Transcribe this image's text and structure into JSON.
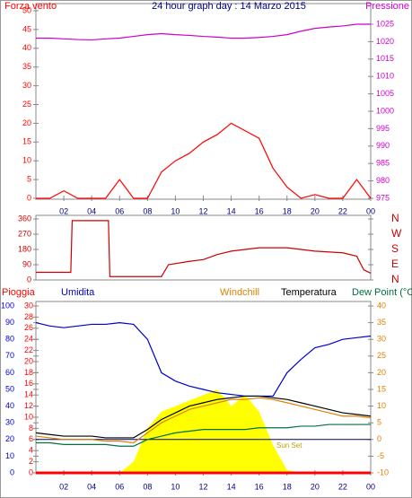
{
  "chart_data": [
    {
      "type": "line",
      "title": "24 hour graph day : 14 Marzo 2015",
      "xlim": [
        0,
        24
      ],
      "xticks": [
        {
          "value": 2,
          "label": "02"
        },
        {
          "value": 4,
          "label": "04"
        },
        {
          "value": 6,
          "label": "06"
        },
        {
          "value": 8,
          "label": "08"
        },
        10,
        12,
        14,
        16,
        18,
        20,
        22,
        {
          "value": 24,
          "label": "00"
        }
      ],
      "x": [
        0,
        1,
        2,
        3,
        4,
        5,
        6,
        7,
        8,
        9,
        10,
        11,
        12,
        13,
        14,
        15,
        16,
        17,
        18,
        19,
        20,
        21,
        22,
        23,
        24
      ],
      "ylim": [
        0,
        50
      ],
      "yticks": [
        0,
        5,
        10,
        15,
        20,
        25,
        30,
        35,
        40,
        45,
        50
      ],
      "y2lim": [
        975,
        1025
      ],
      "y2ticks": [
        975,
        980,
        985,
        990,
        995,
        1000,
        1005,
        1010,
        1015,
        1020,
        1025
      ],
      "series": [
        {
          "name": "Forza vento",
          "color": "#ff0000",
          "values": [
            0,
            0,
            2,
            0,
            0,
            0,
            5,
            0,
            0,
            7,
            10,
            12,
            15,
            17,
            20,
            18,
            16,
            8,
            3,
            0,
            1,
            0,
            0,
            5,
            0
          ]
        },
        {
          "name": "Pressione",
          "color": "#cc00cc",
          "axis": "y2",
          "values": [
            1021,
            1021,
            1020.8,
            1020.6,
            1020.5,
            1020.8,
            1021,
            1021.5,
            1022,
            1022.3,
            1022,
            1021.8,
            1021.5,
            1021.3,
            1021,
            1021,
            1021.2,
            1021.5,
            1022,
            1023,
            1023.8,
            1024.2,
            1024.5,
            1025,
            1025
          ]
        }
      ]
    },
    {
      "type": "line",
      "xlim": [
        0,
        24
      ],
      "x": [
        0,
        2.5,
        2.6,
        5.2,
        5.3,
        9,
        9.5,
        11,
        12,
        13,
        14,
        15,
        16,
        18,
        20,
        22,
        23,
        23.5,
        24
      ],
      "ylim": [
        0,
        360
      ],
      "yticks": [
        0,
        90,
        180,
        270,
        360
      ],
      "y2ticks": [
        {
          "value": 0,
          "label": "N"
        },
        {
          "value": 90,
          "label": "E"
        },
        {
          "value": 180,
          "label": "S"
        },
        {
          "value": 270,
          "label": "W"
        },
        {
          "value": 360,
          "label": "N"
        }
      ],
      "series": [
        {
          "color": "#cc0000",
          "values": [
            45,
            45,
            350,
            350,
            20,
            20,
            90,
            110,
            120,
            150,
            170,
            180,
            190,
            190,
            170,
            160,
            140,
            60,
            40
          ]
        }
      ]
    },
    {
      "type": "line",
      "xlim": [
        0,
        24
      ],
      "xticks": [
        {
          "value": 2,
          "label": "02"
        },
        {
          "value": 4,
          "label": "04"
        },
        {
          "value": 6,
          "label": "06"
        },
        {
          "value": 8,
          "label": "08"
        },
        10,
        12,
        14,
        16,
        18,
        20,
        22,
        {
          "value": 24,
          "label": "00"
        }
      ],
      "x": [
        0,
        1,
        2,
        3,
        4,
        5,
        6,
        7,
        8,
        9,
        10,
        11,
        12,
        13,
        14,
        15,
        16,
        17,
        18,
        19,
        20,
        21,
        22,
        23,
        24
      ],
      "ylim": [
        0,
        100
      ],
      "yticks": [
        0,
        10,
        20,
        30,
        40,
        50,
        60,
        70,
        80,
        90,
        100
      ],
      "y2lim": [
        -10,
        40
      ],
      "y2ticks": [
        -10,
        -5,
        0,
        5,
        10,
        15,
        20,
        25,
        30,
        35,
        40
      ],
      "y3lim": [
        0,
        30
      ],
      "y3ticks": [
        0,
        2,
        4,
        6,
        8,
        10,
        12,
        14,
        16,
        18,
        20,
        22,
        24,
        26,
        28,
        30
      ],
      "zero_line": 0,
      "fill_series": {
        "color": "#ffff00",
        "values": [
          0,
          0,
          0,
          0,
          0,
          0,
          0,
          2,
          8,
          11,
          12,
          13,
          14,
          15,
          12,
          14,
          11,
          5,
          0.5,
          0,
          0,
          0,
          0,
          0,
          0
        ]
      },
      "annotations": [
        "Sun Set"
      ],
      "series": [
        {
          "name": "Pioggia",
          "color": "#ff0000",
          "axis": "y3",
          "values": [
            0,
            0,
            0,
            0,
            0,
            0,
            0,
            0,
            0,
            0,
            0,
            0,
            0,
            0,
            0,
            0,
            0,
            0,
            0,
            0,
            0,
            0,
            0,
            0,
            0
          ]
        },
        {
          "name": "Umidita",
          "color": "#0000cc",
          "values": [
            90,
            88,
            87,
            88,
            89,
            89,
            90,
            89,
            80,
            60,
            55,
            52,
            50,
            48,
            47,
            46,
            46,
            46,
            60,
            68,
            75,
            77,
            80,
            81,
            82
          ]
        },
        {
          "name": "Windchill",
          "color": "#e08000",
          "axis": "y2",
          "values": [
            1,
            0.5,
            0,
            0,
            0,
            -0.5,
            -0.5,
            -1,
            2,
            5,
            7,
            9,
            10,
            11,
            12,
            12,
            12.5,
            12,
            11,
            10,
            9,
            8,
            7,
            7,
            6.5
          ]
        },
        {
          "name": "Temperatura",
          "color": "#000000",
          "axis": "y2",
          "values": [
            2,
            1.5,
            1,
            1,
            1,
            0.5,
            0.5,
            0.5,
            3,
            6,
            8,
            10,
            11,
            12,
            12.5,
            13,
            13,
            12.5,
            12,
            11,
            10,
            9,
            8,
            7.5,
            7
          ]
        },
        {
          "name": "Dew Point (°C",
          "color": "#007040",
          "axis": "y2",
          "values": [
            -1,
            -1,
            -1.5,
            -1.5,
            -1.5,
            -1.5,
            -2,
            -2,
            0,
            1,
            2,
            2.5,
            3,
            3,
            3,
            3,
            3.5,
            3.5,
            3.5,
            4,
            4,
            4.5,
            4.5,
            4.5,
            4.5
          ]
        }
      ]
    }
  ]
}
